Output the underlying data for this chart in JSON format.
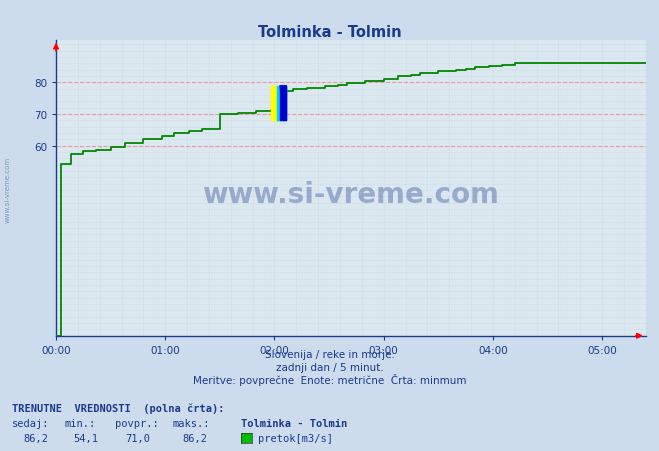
{
  "title": "Tolminka - Tolmin",
  "title_color": "#1a3a8c",
  "bg_color": "#ccdcec",
  "plot_bg_color": "#dce8f0",
  "line_color": "#008800",
  "axis_color": "#1a3a8c",
  "grid_color_major_h": "#ee9999",
  "grid_color_minor_v": "#bbccdd",
  "grid_color_minor_h": "#bbccdd",
  "xlabel_lines": [
    "Slovenija / reke in morje.",
    "zadnji dan / 5 minut.",
    "Meritve: povprečne  Enote: metrične  Črta: minmum"
  ],
  "xlim": [
    0,
    324
  ],
  "ylim": [
    0,
    93.5
  ],
  "yticks": [
    60,
    70,
    80
  ],
  "xtick_labels": [
    "00:00",
    "01:00",
    "02:00",
    "03:00",
    "04:00",
    "05:00"
  ],
  "xtick_positions": [
    0,
    60,
    120,
    180,
    240,
    300
  ],
  "footer_line1": "TRENUTNE  VREDNOSTI  (polna črta):",
  "footer_labels": [
    "sedaj:",
    "min.:",
    "povpr.:",
    "maks.:"
  ],
  "footer_values": [
    "86,2",
    "54,1",
    "71,0",
    "86,2"
  ],
  "footer_legend_label": "Tolminka - Tolmin",
  "footer_legend_unit": "pretok[m3/s]",
  "footer_legend_color": "#00bb00",
  "watermark": "www.si-vreme.com",
  "watermark_color": "#1a3a8c",
  "side_text": "www.si-vreme.com",
  "side_text_color": "#6688aa",
  "x_data": [
    0,
    3,
    3,
    8,
    8,
    15,
    15,
    22,
    22,
    30,
    30,
    38,
    38,
    48,
    48,
    58,
    58,
    65,
    65,
    73,
    73,
    80,
    80,
    90,
    90,
    100,
    100,
    110,
    110,
    118,
    118,
    122,
    122,
    130,
    130,
    138,
    138,
    148,
    148,
    155,
    155,
    160,
    160,
    170,
    170,
    180,
    180,
    188,
    188,
    195,
    195,
    200,
    200,
    210,
    210,
    220,
    220,
    225,
    225,
    230,
    230,
    238,
    238,
    245,
    245,
    252,
    252,
    258,
    258,
    265,
    265,
    270,
    270,
    275,
    275,
    280,
    280,
    285,
    285,
    290,
    290,
    295,
    295,
    300,
    300,
    308,
    308,
    316,
    316,
    324
  ],
  "y_data": [
    0,
    0,
    54.1,
    54.1,
    57.5,
    57.5,
    58.2,
    58.2,
    58.8,
    58.8,
    59.5,
    59.5,
    61.0,
    61.0,
    62.0,
    62.0,
    63.0,
    63.0,
    64.0,
    64.0,
    64.8,
    64.8,
    65.2,
    65.2,
    70.0,
    70.0,
    70.5,
    70.5,
    71.0,
    71.0,
    71.2,
    71.2,
    77.2,
    77.2,
    77.8,
    77.8,
    78.2,
    78.2,
    78.8,
    78.8,
    79.2,
    79.2,
    79.8,
    79.8,
    80.5,
    80.5,
    81.2,
    81.2,
    82.0,
    82.0,
    82.5,
    82.5,
    83.0,
    83.0,
    83.5,
    83.5,
    84.0,
    84.0,
    84.3,
    84.3,
    84.8,
    84.8,
    85.2,
    85.2,
    85.5,
    85.5,
    86.0,
    86.0,
    86.2,
    86.2,
    86.2,
    86.2,
    86.2,
    86.2,
    86.2,
    86.2,
    86.2,
    86.2,
    86.2,
    86.2,
    86.2,
    86.2,
    86.2,
    86.2,
    86.2,
    86.2,
    86.2,
    86.2,
    86.2,
    86.2
  ]
}
